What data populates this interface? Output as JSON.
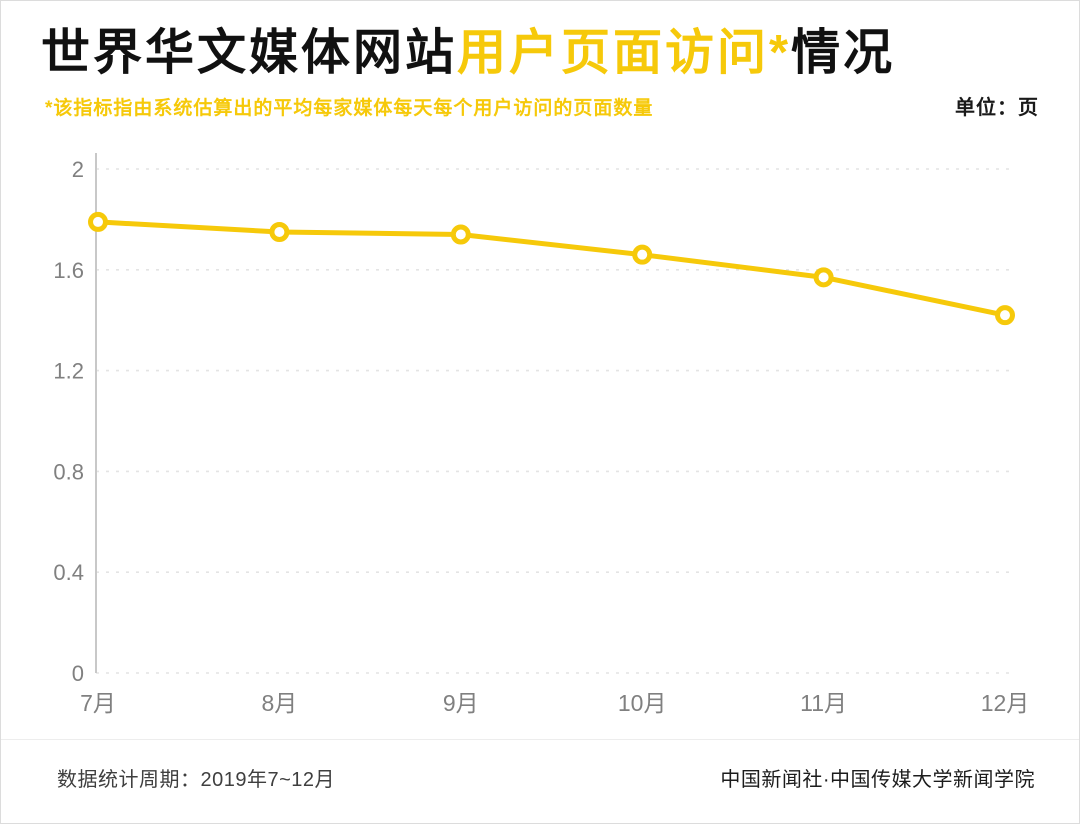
{
  "title": {
    "part1": "世界华文媒体网站",
    "part2": "用户页面访问*",
    "part3": "情况"
  },
  "subtitle": "*该指标指由系统估算出的平均每家媒体每天每个用户访问的页面数量",
  "unit_label": "单位：页",
  "footer": {
    "left": "数据统计周期：2019年7~12月",
    "right": "中国新闻社·中国传媒大学新闻学院"
  },
  "colors": {
    "accent": "#F6C90A",
    "axis_text": "#808080",
    "grid": "#e4e4e4",
    "axis_line": "#c8c8c8"
  },
  "chart_data": {
    "type": "line",
    "categories": [
      "7月",
      "8月",
      "9月",
      "10月",
      "11月",
      "12月"
    ],
    "values": [
      1.79,
      1.75,
      1.74,
      1.66,
      1.57,
      1.42
    ],
    "title": "世界华文媒体网站用户页面访问*情况",
    "xlabel": "",
    "ylabel": "单位：页",
    "ylim": [
      0,
      2
    ],
    "yticks": [
      0,
      0.4,
      0.8,
      1.2,
      1.6,
      2
    ],
    "grid": "horizontal-dashed",
    "legend": "none",
    "marker": "open-circle"
  }
}
